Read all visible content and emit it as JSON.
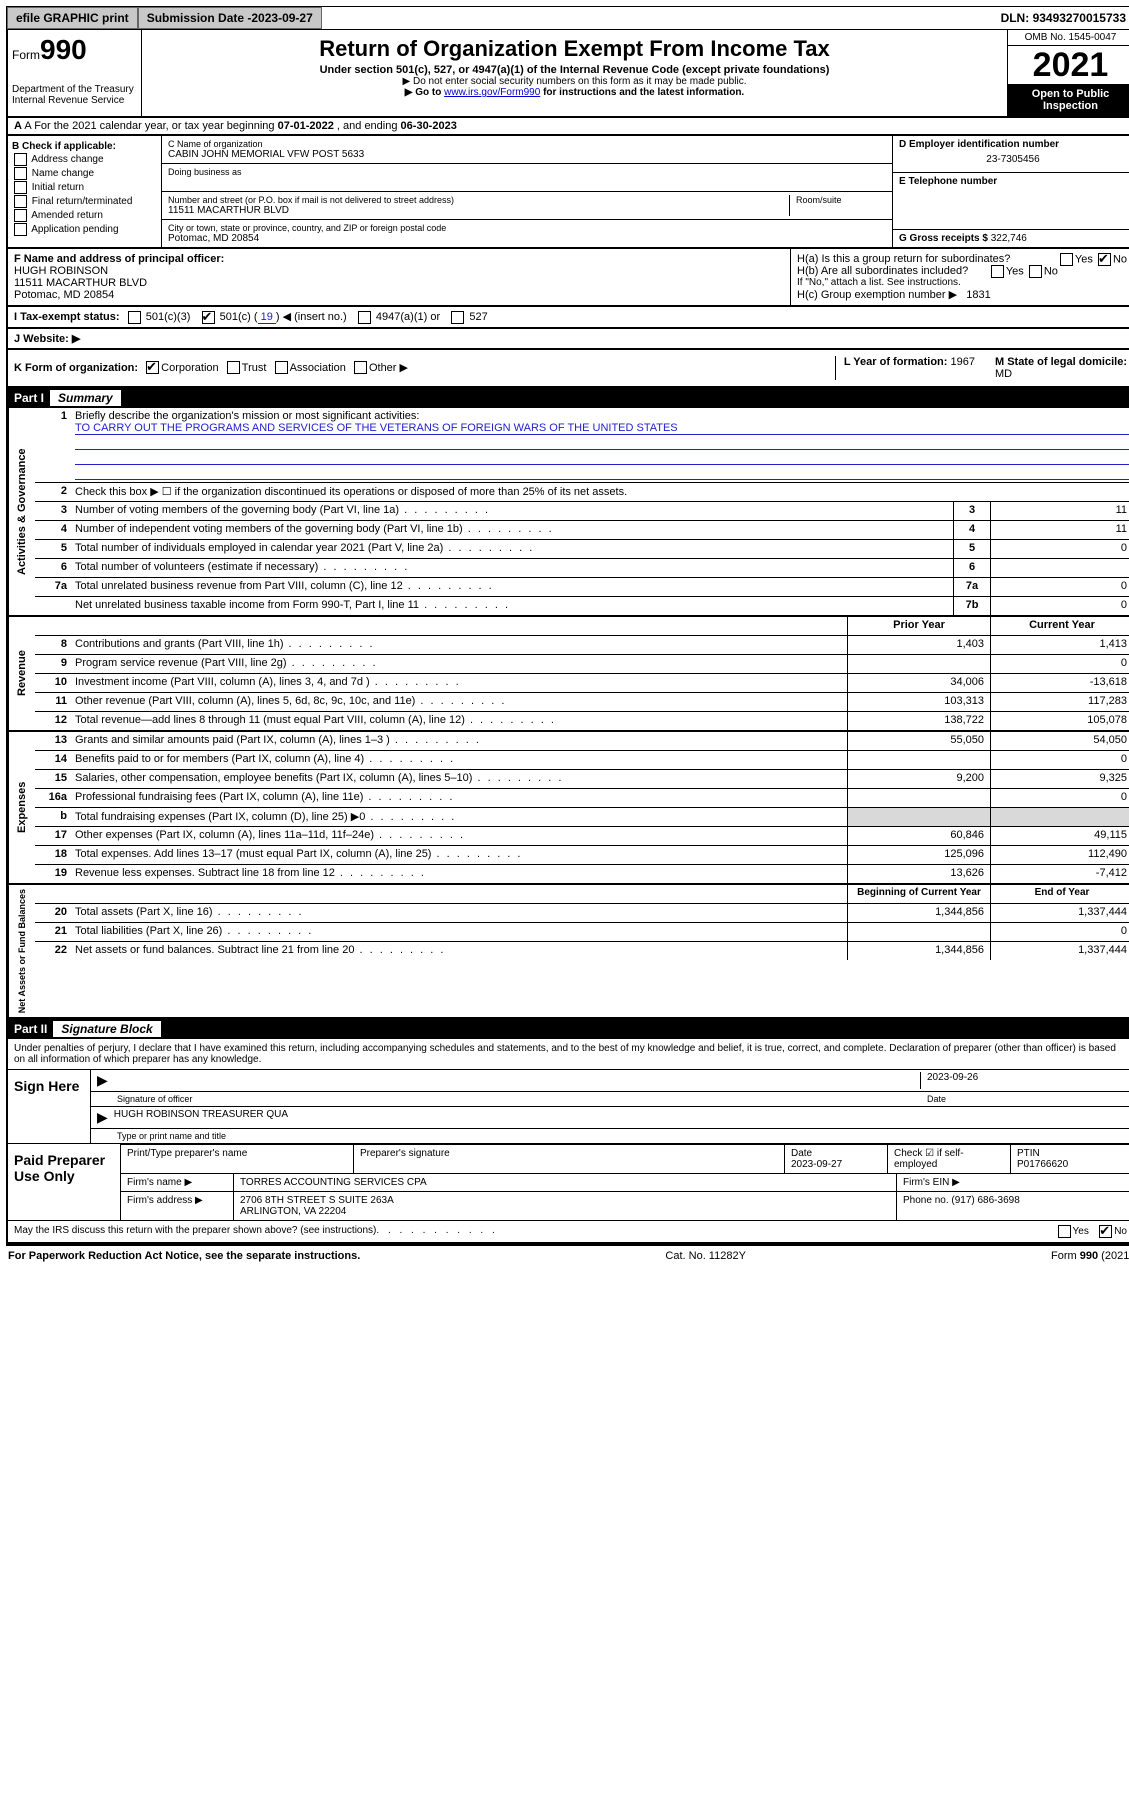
{
  "topbar": {
    "efile": "efile GRAPHIC print",
    "submission_label": "Submission Date - ",
    "submission_date": "2023-09-27",
    "dln_label": "DLN: ",
    "dln": "93493270015733"
  },
  "header": {
    "form_prefix": "Form",
    "form_no": "990",
    "dept": "Department of the Treasury",
    "irs": "Internal Revenue Service",
    "title": "Return of Organization Exempt From Income Tax",
    "sub": "Under section 501(c), 527, or 4947(a)(1) of the Internal Revenue Code (except private foundations)",
    "note1": "▶ Do not enter social security numbers on this form as it may be made public.",
    "note2_pre": "▶ Go to ",
    "note2_link": "www.irs.gov/Form990",
    "note2_post": " for instructions and the latest information.",
    "omb": "OMB No. 1545-0047",
    "year": "2021",
    "open": "Open to Public Inspection"
  },
  "rowA": {
    "text_pre": "A For the 2021 calendar year, or tax year beginning ",
    "begin": "07-01-2022",
    "mid": " , and ending ",
    "end": "06-30-2023"
  },
  "colB": {
    "hdr": "B Check if applicable:",
    "items": [
      "Address change",
      "Name change",
      "Initial return",
      "Final return/terminated",
      "Amended return",
      "Application pending"
    ]
  },
  "colC": {
    "name_lbl": "C Name of organization",
    "name": "CABIN JOHN MEMORIAL VFW POST 5633",
    "dba_lbl": "Doing business as",
    "addr_lbl": "Number and street (or P.O. box if mail is not delivered to street address)",
    "room_lbl": "Room/suite",
    "addr": "11511 MACARTHUR BLVD",
    "city_lbl": "City or town, state or province, country, and ZIP or foreign postal code",
    "city": "Potomac, MD  20854"
  },
  "colD": {
    "lbl": "D Employer identification number",
    "val": "23-7305456"
  },
  "colE": {
    "lbl": "E Telephone number"
  },
  "colG": {
    "lbl": "G Gross receipts $ ",
    "val": "322,746"
  },
  "sectionF": {
    "lbl": "F  Name and address of principal officer:",
    "name": "HUGH ROBINSON",
    "addr1": "11511 MACARTHUR BLVD",
    "addr2": "Potomac, MD  20854"
  },
  "sectionH": {
    "ha": "H(a)  Is this a group return for subordinates?",
    "hb": "H(b)  Are all subordinates included?",
    "hb_note": "If \"No,\" attach a list. See instructions.",
    "hc": "H(c)  Group exemption number ▶",
    "hc_val": "1831",
    "yes": "Yes",
    "no": "No"
  },
  "rowI": {
    "lbl": "I     Tax-exempt status:",
    "o1": "501(c)(3)",
    "o2": "501(c) (",
    "o2v": " 19 ",
    "o2post": ") ◀ (insert no.)",
    "o3": "4947(a)(1) or",
    "o4": "527"
  },
  "rowJ": {
    "lbl": "J    Website: ▶"
  },
  "rowK": {
    "lbl": "K Form of organization:",
    "o1": "Corporation",
    "o2": "Trust",
    "o3": "Association",
    "o4": "Other ▶",
    "L": "L Year of formation: ",
    "Lval": "1967",
    "M": "M State of legal domicile:",
    "Mval": "MD"
  },
  "part1": {
    "num": "Part I",
    "title": "Summary"
  },
  "summary": {
    "sideA": "Activities & Governance",
    "sideR": "Revenue",
    "sideE": "Expenses",
    "sideN": "Net Assets or Fund Balances",
    "l1_lbl": "Briefly describe the organization's mission or most significant activities:",
    "l1_val": "TO CARRY OUT THE PROGRAMS AND SERVICES OF THE VETERANS OF FOREIGN WARS OF THE UNITED STATES",
    "l2": "Check this box ▶ ☐  if the organization discontinued its operations or disposed of more than 25% of its net assets.",
    "rows_gov": [
      {
        "n": "3",
        "t": "Number of voting members of the governing body (Part VI, line 1a)",
        "box": "3",
        "v": "11"
      },
      {
        "n": "4",
        "t": "Number of independent voting members of the governing body (Part VI, line 1b)",
        "box": "4",
        "v": "11"
      },
      {
        "n": "5",
        "t": "Total number of individuals employed in calendar year 2021 (Part V, line 2a)",
        "box": "5",
        "v": "0"
      },
      {
        "n": "6",
        "t": "Total number of volunteers (estimate if necessary)",
        "box": "6",
        "v": ""
      },
      {
        "n": "7a",
        "t": "Total unrelated business revenue from Part VIII, column (C), line 12",
        "box": "7a",
        "v": "0"
      },
      {
        "n": "",
        "t": "Net unrelated business taxable income from Form 990-T, Part I, line 11",
        "box": "7b",
        "v": "0"
      }
    ],
    "col_prior": "Prior Year",
    "col_curr": "Current Year",
    "col_begin": "Beginning of Current Year",
    "col_end": "End of Year",
    "rows_rev": [
      {
        "n": "8",
        "t": "Contributions and grants (Part VIII, line 1h)",
        "p": "1,403",
        "c": "1,413"
      },
      {
        "n": "9",
        "t": "Program service revenue (Part VIII, line 2g)",
        "p": "",
        "c": "0"
      },
      {
        "n": "10",
        "t": "Investment income (Part VIII, column (A), lines 3, 4, and 7d )",
        "p": "34,006",
        "c": "-13,618"
      },
      {
        "n": "11",
        "t": "Other revenue (Part VIII, column (A), lines 5, 6d, 8c, 9c, 10c, and 11e)",
        "p": "103,313",
        "c": "117,283"
      },
      {
        "n": "12",
        "t": "Total revenue—add lines 8 through 11 (must equal Part VIII, column (A), line 12)",
        "p": "138,722",
        "c": "105,078"
      }
    ],
    "rows_exp": [
      {
        "n": "13",
        "t": "Grants and similar amounts paid (Part IX, column (A), lines 1–3 )",
        "p": "55,050",
        "c": "54,050"
      },
      {
        "n": "14",
        "t": "Benefits paid to or for members (Part IX, column (A), line 4)",
        "p": "",
        "c": "0"
      },
      {
        "n": "15",
        "t": "Salaries, other compensation, employee benefits (Part IX, column (A), lines 5–10)",
        "p": "9,200",
        "c": "9,325"
      },
      {
        "n": "16a",
        "t": "Professional fundraising fees (Part IX, column (A), line 11e)",
        "p": "",
        "c": "0"
      },
      {
        "n": "b",
        "t": "Total fundraising expenses (Part IX, column (D), line 25) ▶0",
        "p": "grey",
        "c": "grey"
      },
      {
        "n": "17",
        "t": "Other expenses (Part IX, column (A), lines 11a–11d, 11f–24e)",
        "p": "60,846",
        "c": "49,115"
      },
      {
        "n": "18",
        "t": "Total expenses. Add lines 13–17 (must equal Part IX, column (A), line 25)",
        "p": "125,096",
        "c": "112,490"
      },
      {
        "n": "19",
        "t": "Revenue less expenses. Subtract line 18 from line 12",
        "p": "13,626",
        "c": "-7,412"
      }
    ],
    "rows_net": [
      {
        "n": "20",
        "t": "Total assets (Part X, line 16)",
        "p": "1,344,856",
        "c": "1,337,444"
      },
      {
        "n": "21",
        "t": "Total liabilities (Part X, line 26)",
        "p": "",
        "c": "0"
      },
      {
        "n": "22",
        "t": "Net assets or fund balances. Subtract line 21 from line 20",
        "p": "1,344,856",
        "c": "1,337,444"
      }
    ]
  },
  "part2": {
    "num": "Part II",
    "title": "Signature Block"
  },
  "sig": {
    "decl": "Under penalties of perjury, I declare that I have examined this return, including accompanying schedules and statements, and to the best of my knowledge and belief, it is true, correct, and complete. Declaration of preparer (other than officer) is based on all information of which preparer has any knowledge.",
    "sign_here": "Sign Here",
    "sig_officer": "Signature of officer",
    "date_lbl": "Date",
    "sig_date": "2023-09-26",
    "name_title": "HUGH ROBINSON  TREASURER QUA",
    "type_name": "Type or print name and title",
    "paid": "Paid Preparer Use Only",
    "pp_name_lbl": "Print/Type preparer's name",
    "pp_sig_lbl": "Preparer's signature",
    "pp_date_lbl": "Date",
    "pp_date": "2023-09-27",
    "pp_check": "Check ☑ if self-employed",
    "ptin_lbl": "PTIN",
    "ptin": "P01766620",
    "firm_name_lbl": "Firm's name    ▶",
    "firm_name": "TORRES ACCOUNTING SERVICES CPA",
    "firm_ein_lbl": "Firm's EIN ▶",
    "firm_addr_lbl": "Firm's address ▶",
    "firm_addr1": "2706 8TH STREET S SUITE 263A",
    "firm_addr2": "ARLINGTON, VA  22204",
    "firm_phone_lbl": "Phone no. ",
    "firm_phone": "(917) 686-3698",
    "may_irs": "May the IRS discuss this return with the preparer shown above? (see instructions)"
  },
  "footer": {
    "left": "For Paperwork Reduction Act Notice, see the separate instructions.",
    "mid": "Cat. No. 11282Y",
    "right": "Form 990 (2021)"
  },
  "colors": {
    "link": "#0000cc",
    "grey": "#d9d9d9",
    "btn": "#c8c8c8"
  }
}
